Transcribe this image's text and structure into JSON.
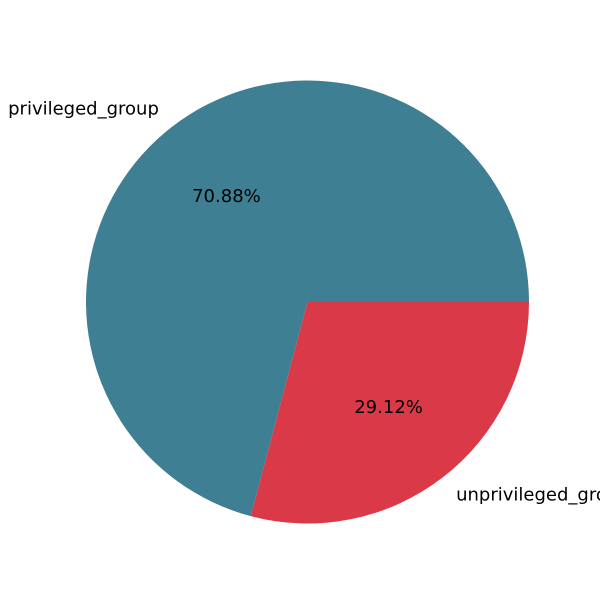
{
  "chart_data": {
    "type": "pie",
    "title": "",
    "slices": [
      {
        "label": "privileged_group",
        "value": 70.88,
        "percent_label": "70.88%",
        "color": "#3f7f93"
      },
      {
        "label": "unprivileged_group",
        "value": 29.12,
        "percent_label": "29.12%",
        "color": "#da3a47"
      }
    ],
    "start_angle_deg": 0,
    "direction": "counterclockwise"
  }
}
